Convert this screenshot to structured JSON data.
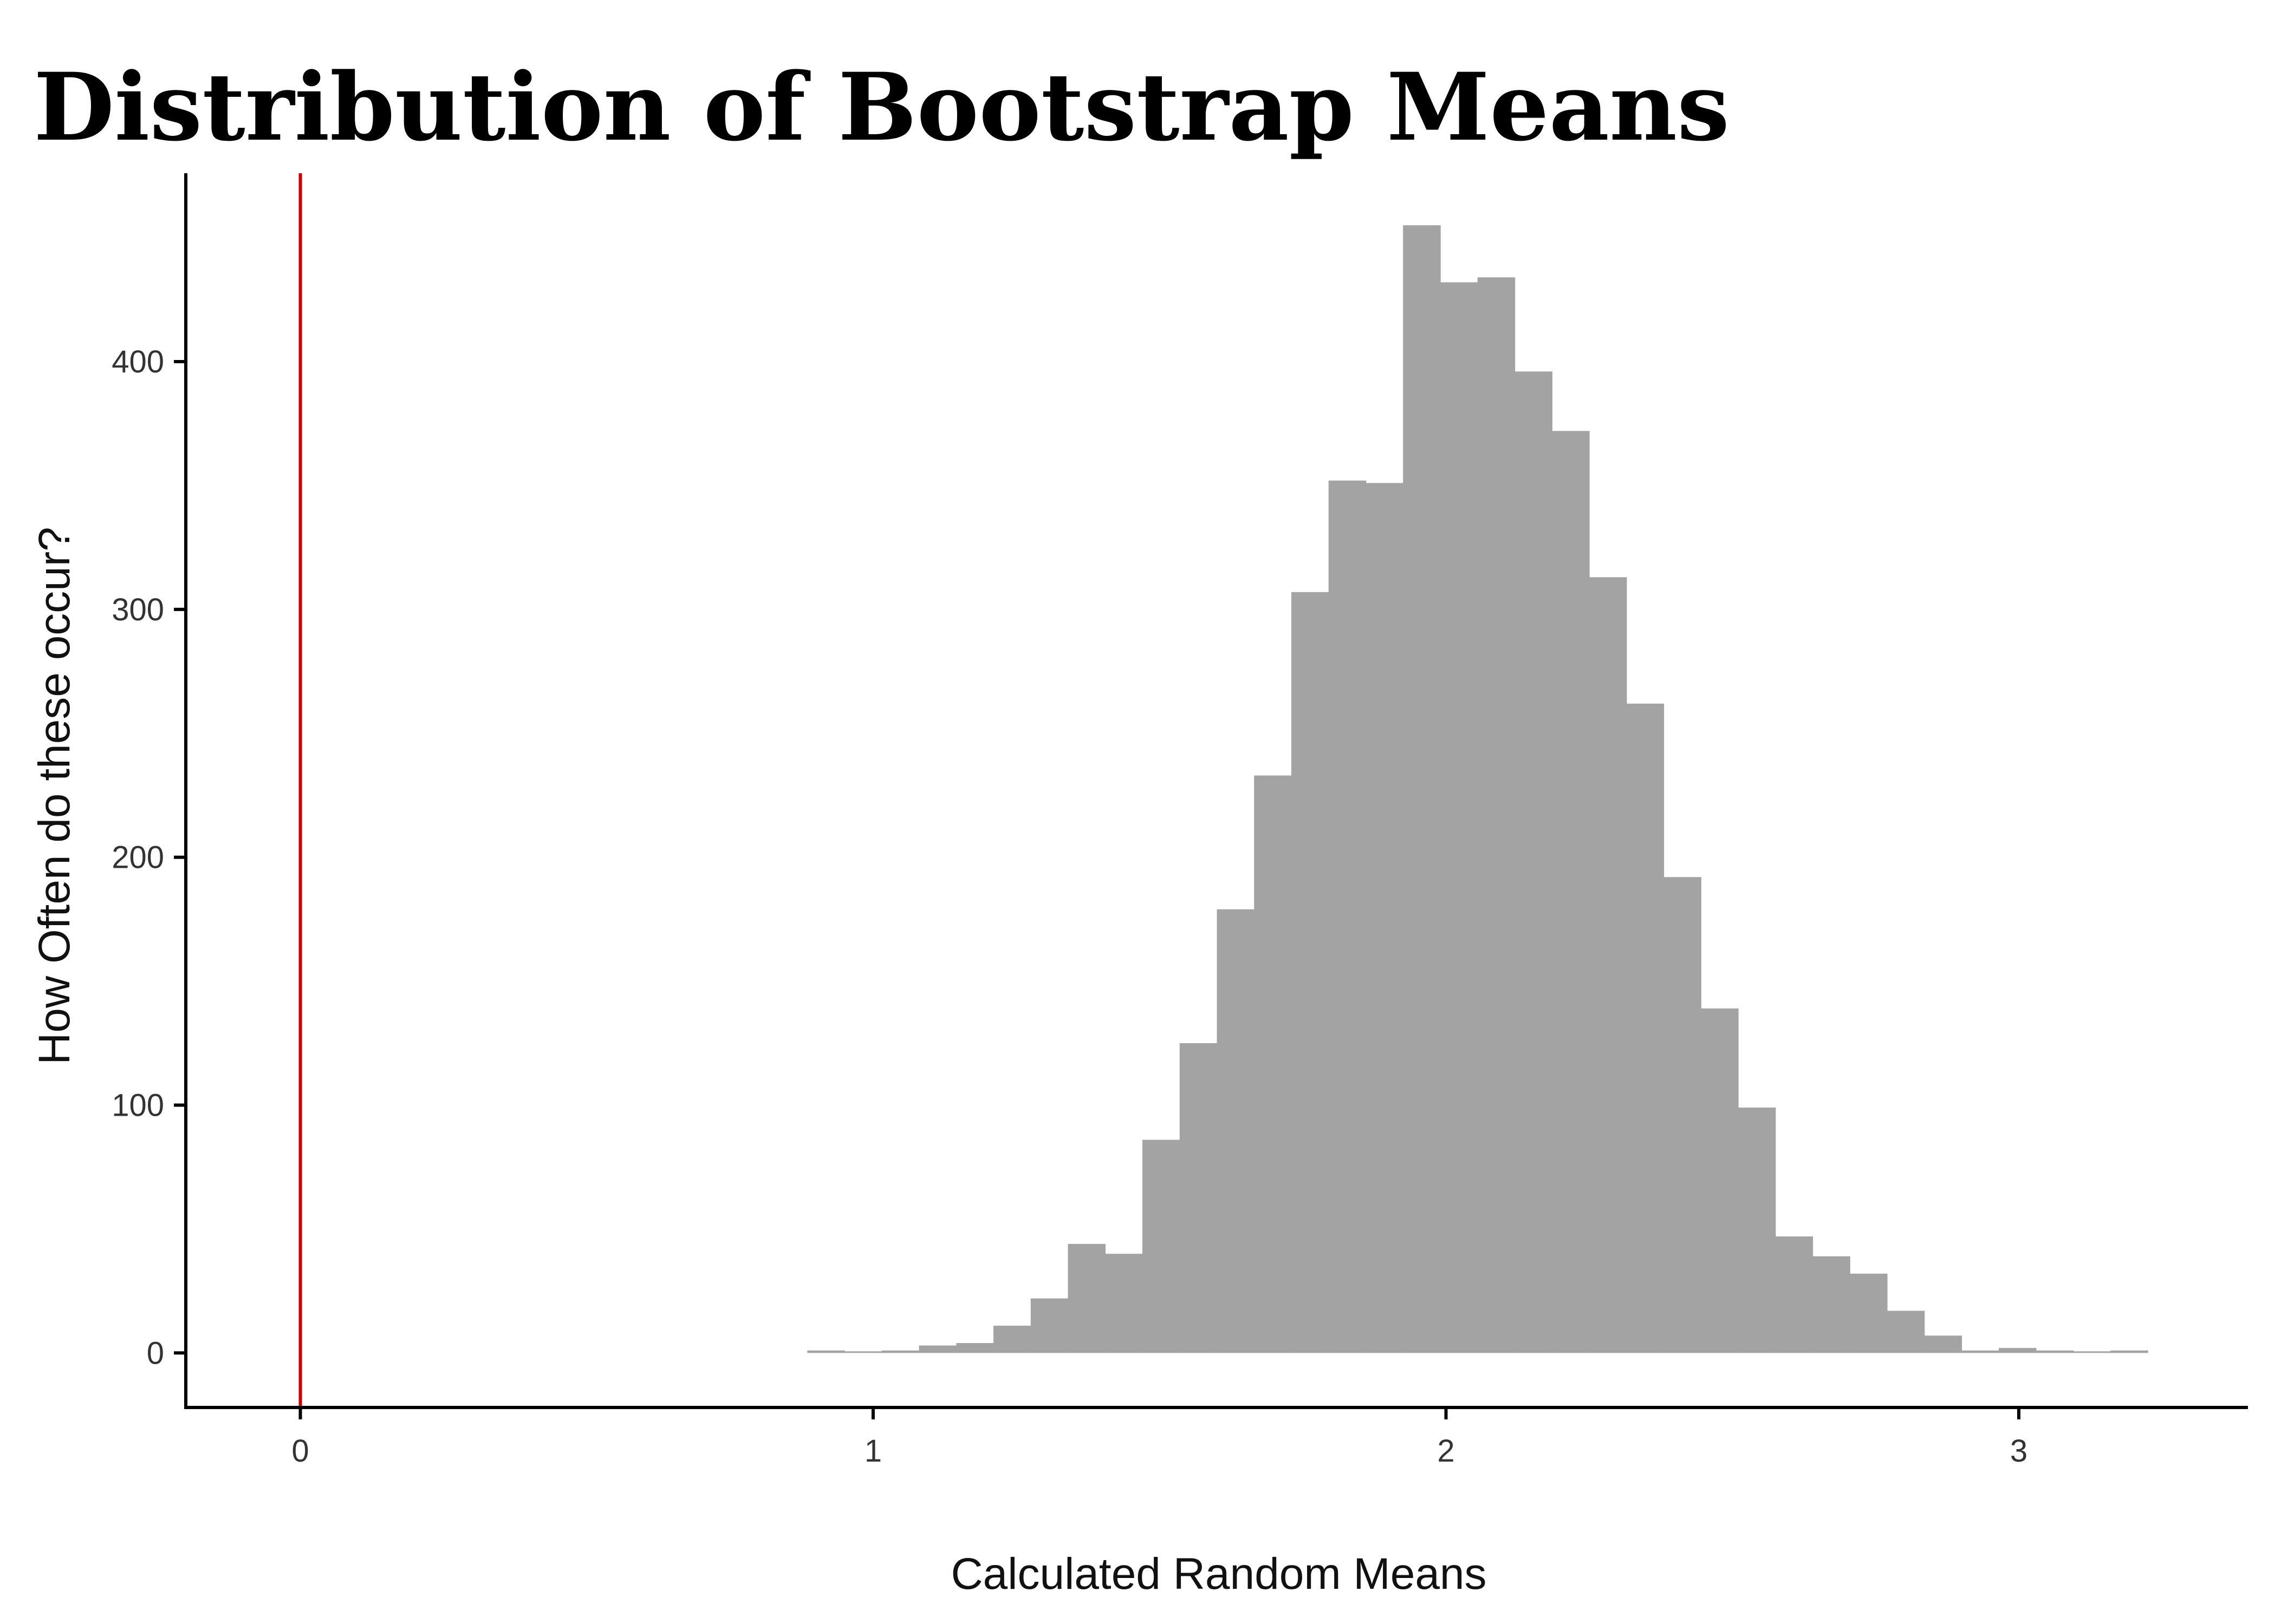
{
  "chart_data": {
    "type": "bar",
    "title": "Distribution of Bootstrap Means",
    "xlabel": "Calculated Random Means",
    "ylabel": "How Often do these occur?",
    "xlim": [
      -0.2,
      3.4
    ],
    "ylim": [
      -22,
      476
    ],
    "x_ticks": [
      0,
      1,
      2,
      3
    ],
    "y_ticks": [
      0,
      100,
      200,
      300,
      400
    ],
    "x_tick_labels": [
      "0",
      "1",
      "2",
      "3"
    ],
    "y_tick_labels": [
      "0",
      "100",
      "200",
      "300",
      "400"
    ],
    "bin_width": 0.065,
    "bins_start": [
      0.885,
      0.95,
      1.015,
      1.08,
      1.145,
      1.21,
      1.275,
      1.34,
      1.405,
      1.47,
      1.535,
      1.6,
      1.665,
      1.73,
      1.795,
      1.86,
      1.925,
      1.99,
      2.055,
      2.12,
      2.185,
      2.25,
      2.315,
      2.38,
      2.445,
      2.51,
      2.575,
      2.64,
      2.705,
      2.77,
      2.835,
      2.9,
      2.965,
      3.03,
      3.095,
      3.16
    ],
    "counts": [
      1,
      0,
      1,
      3,
      4,
      11,
      22,
      44,
      40,
      86,
      125,
      179,
      233,
      307,
      352,
      351,
      455,
      432,
      434,
      396,
      372,
      313,
      262,
      192,
      139,
      99,
      47,
      39,
      32,
      17,
      7,
      1,
      2,
      1,
      0,
      1
    ],
    "reference_line": {
      "x": 0,
      "color": "#cc0000"
    },
    "bar_color": "#a3a3a3",
    "axis_color": "#000000",
    "grid": false
  }
}
